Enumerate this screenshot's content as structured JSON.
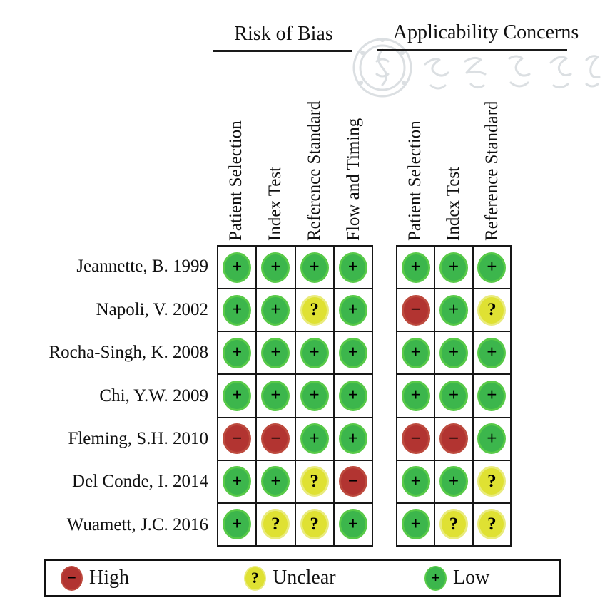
{
  "figure": {
    "group_headers": {
      "risk_of_bias": "Risk of Bias",
      "applicability": "Applicability Concerns"
    }
  },
  "symbols": {
    "high": "−",
    "unclear": "?",
    "low": "+"
  },
  "colors": {
    "low": "#3cb64c",
    "low_edge": "#58ca48",
    "unclear": "#dfe133",
    "unclear_edge": "#e9eb7c",
    "high": "#b23431",
    "high_edge": "#bd4a3e",
    "grid_line": "#161616",
    "watermark": "#c9ced3"
  },
  "legend": {
    "items": [
      {
        "level": "high",
        "symbol": "−",
        "label": "High"
      },
      {
        "level": "unclear",
        "symbol": "?",
        "label": "Unclear"
      },
      {
        "level": "low",
        "symbol": "+",
        "label": "Low"
      }
    ]
  },
  "chart_data": {
    "type": "table",
    "column_groups": [
      {
        "label": "Risk of Bias",
        "columns": [
          "Patient Selection",
          "Index Test",
          "Reference Standard",
          "Flow and Timing"
        ]
      },
      {
        "label": "Applicability Concerns",
        "columns": [
          "Patient Selection",
          "Index Test",
          "Reference Standard"
        ]
      }
    ],
    "rows": [
      {
        "study": "Jeannette, B. 1999",
        "risk_of_bias": [
          "Low",
          "Low",
          "Low",
          "Low"
        ],
        "applicability": [
          "Low",
          "Low",
          "Low"
        ]
      },
      {
        "study": "Napoli, V. 2002",
        "risk_of_bias": [
          "Low",
          "Low",
          "Unclear",
          "Low"
        ],
        "applicability": [
          "High",
          "Low",
          "Unclear"
        ]
      },
      {
        "study": "Rocha-Singh, K. 2008",
        "risk_of_bias": [
          "Low",
          "Low",
          "Low",
          "Low"
        ],
        "applicability": [
          "Low",
          "Low",
          "Low"
        ]
      },
      {
        "study": "Chi, Y.W. 2009",
        "risk_of_bias": [
          "Low",
          "Low",
          "Low",
          "Low"
        ],
        "applicability": [
          "Low",
          "Low",
          "Low"
        ]
      },
      {
        "study": "Fleming, S.H. 2010",
        "risk_of_bias": [
          "High",
          "High",
          "Low",
          "Low"
        ],
        "applicability": [
          "High",
          "High",
          "Low"
        ]
      },
      {
        "study": "Del Conde, I. 2014",
        "risk_of_bias": [
          "Low",
          "Low",
          "Unclear",
          "High"
        ],
        "applicability": [
          "Low",
          "Low",
          "Unclear"
        ]
      },
      {
        "study": "Wuamett, J.C. 2016",
        "risk_of_bias": [
          "Low",
          "Unclear",
          "Unclear",
          "Low"
        ],
        "applicability": [
          "Low",
          "Unclear",
          "Unclear"
        ]
      }
    ],
    "legend_labels": [
      "High",
      "Unclear",
      "Low"
    ]
  }
}
